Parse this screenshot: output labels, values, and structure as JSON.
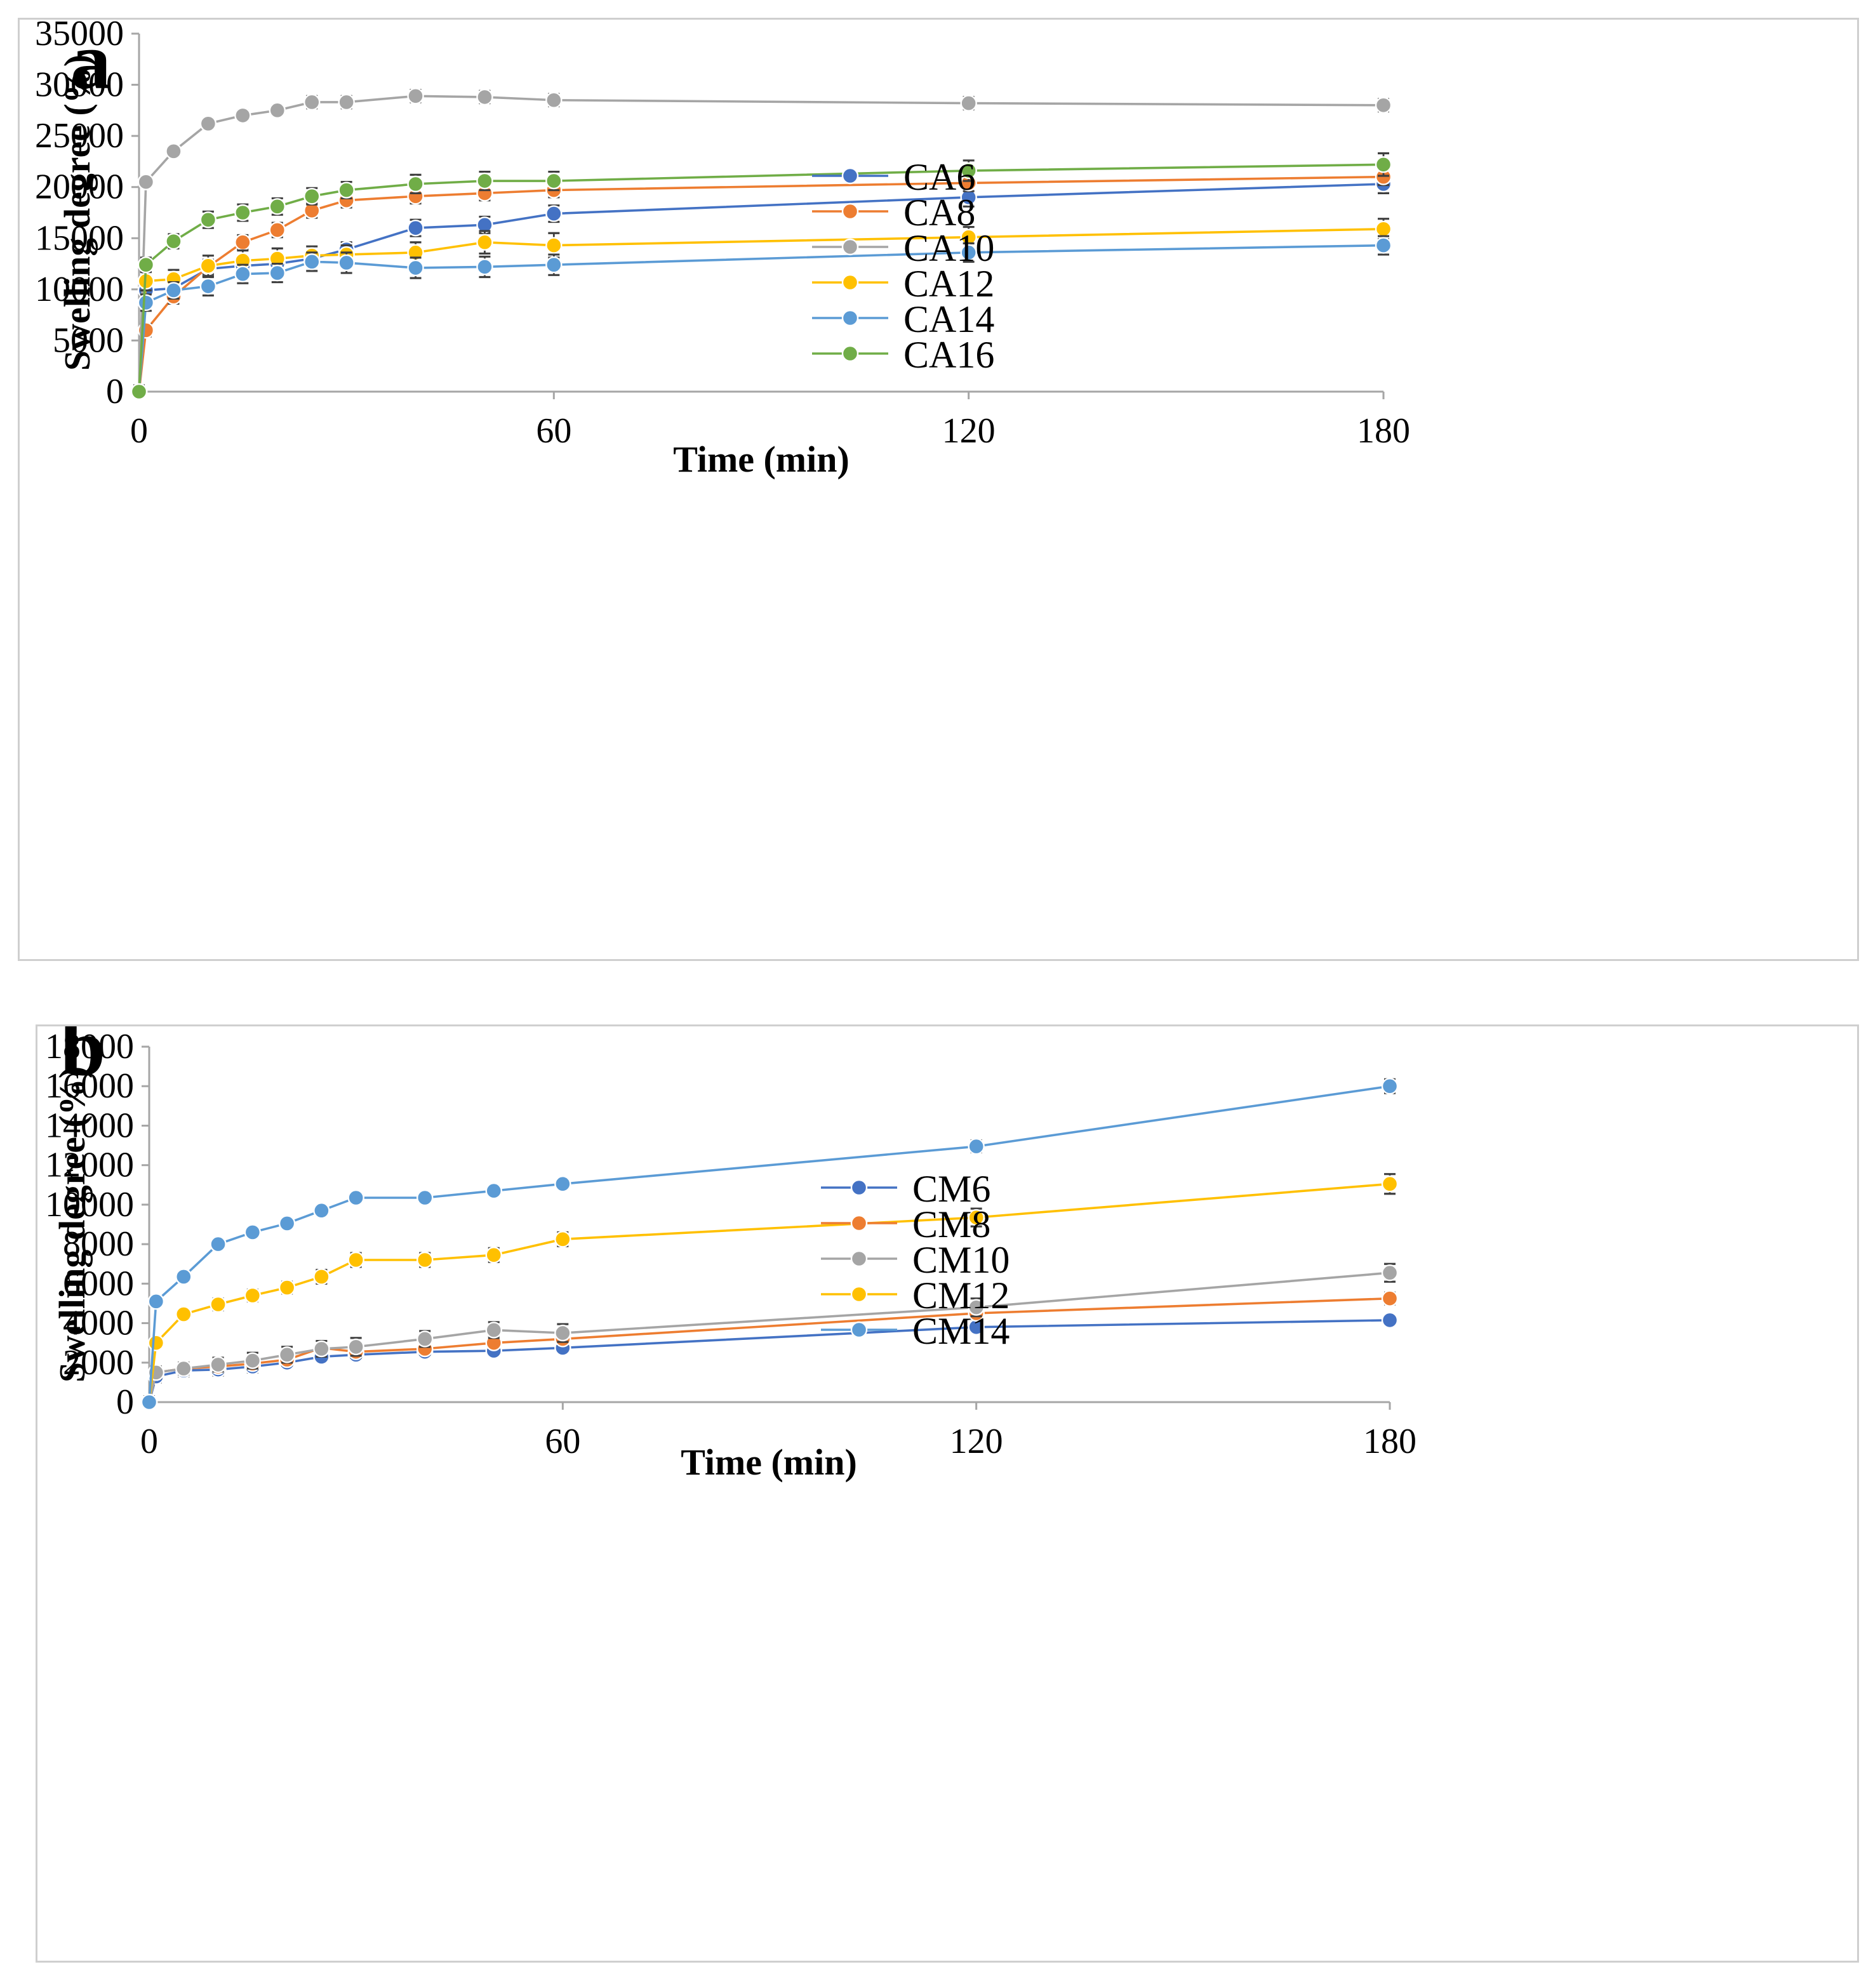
{
  "chart_data": [
    {
      "type": "line",
      "panel_label": "a",
      "title": "",
      "xlabel": "Time (min)",
      "ylabel": "Swelling degree (%)",
      "xlim": [
        0,
        180
      ],
      "ylim": [
        0,
        35000
      ],
      "xticks": [
        0,
        60,
        120,
        180
      ],
      "yticks": [
        0,
        5000,
        10000,
        15000,
        20000,
        25000,
        30000,
        35000
      ],
      "legend_position": "right",
      "x": [
        0,
        1,
        5,
        10,
        15,
        20,
        25,
        30,
        40,
        50,
        60,
        120,
        180
      ],
      "series": [
        {
          "name": "CA6",
          "color": "#4472c4",
          "values": [
            0,
            9900,
            10100,
            12000,
            12300,
            12500,
            13000,
            13900,
            16000,
            16300,
            17400,
            19000,
            20300
          ],
          "errors": [
            600,
            600,
            600,
            700,
            700,
            700,
            700,
            700,
            800,
            800,
            800,
            900,
            900
          ]
        },
        {
          "name": "CA8",
          "color": "#ed7d31",
          "values": [
            0,
            6000,
            9300,
            12200,
            14600,
            15800,
            17700,
            18700,
            19100,
            19400,
            19700,
            20400,
            21000
          ],
          "errors": [
            600,
            600,
            700,
            700,
            700,
            700,
            700,
            700,
            700,
            700,
            700,
            800,
            800
          ]
        },
        {
          "name": "CA10",
          "color": "#a5a5a5",
          "values": [
            0,
            20500,
            23500,
            26200,
            27000,
            27500,
            28300,
            28300,
            28900,
            28800,
            28500,
            28200,
            28000
          ],
          "errors": [
            500,
            500,
            500,
            500,
            500,
            500,
            600,
            600,
            600,
            600,
            600,
            600,
            600
          ]
        },
        {
          "name": "CA12",
          "color": "#ffc000",
          "values": [
            0,
            10800,
            11000,
            12300,
            12800,
            13000,
            13300,
            13400,
            13600,
            14600,
            14300,
            15100,
            15900
          ],
          "errors": [
            600,
            900,
            900,
            1000,
            1000,
            1000,
            900,
            900,
            1000,
            1100,
            1200,
            1000,
            1000
          ]
        },
        {
          "name": "CA14",
          "color": "#5b9bd5",
          "values": [
            0,
            8700,
            9900,
            10300,
            11500,
            11600,
            12700,
            12600,
            12100,
            12200,
            12400,
            13600,
            14300
          ],
          "errors": [
            600,
            800,
            800,
            900,
            900,
            900,
            900,
            1000,
            1000,
            1000,
            1000,
            900,
            900
          ]
        },
        {
          "name": "CA16",
          "color": "#70ad47",
          "values": [
            0,
            12400,
            14700,
            16800,
            17500,
            18100,
            19100,
            19700,
            20300,
            20600,
            20600,
            21600,
            22200
          ],
          "errors": [
            600,
            700,
            700,
            800,
            800,
            800,
            800,
            800,
            900,
            900,
            900,
            1000,
            1100
          ]
        }
      ]
    },
    {
      "type": "line",
      "panel_label": "b",
      "title": "",
      "xlabel": "Time (min)",
      "ylabel": "Swelling degree (%)",
      "xlim": [
        0,
        180
      ],
      "ylim": [
        0,
        18000
      ],
      "xticks": [
        0,
        60,
        120,
        180
      ],
      "yticks": [
        0,
        2000,
        4000,
        6000,
        8000,
        10000,
        12000,
        14000,
        16000,
        18000
      ],
      "legend_position": "right",
      "x": [
        0,
        1,
        5,
        10,
        15,
        20,
        25,
        30,
        40,
        50,
        60,
        120,
        180
      ],
      "series": [
        {
          "name": "CM6",
          "color": "#4472c4",
          "values": [
            0,
            1300,
            1600,
            1650,
            1800,
            2000,
            2300,
            2400,
            2550,
            2600,
            2750,
            3800,
            4150
          ],
          "errors": [
            300,
            300,
            300,
            300,
            300,
            250,
            250,
            250,
            250,
            250,
            250,
            250,
            250
          ]
        },
        {
          "name": "CM8",
          "color": "#ed7d31",
          "values": [
            0,
            1500,
            1700,
            1800,
            1950,
            2150,
            2750,
            2550,
            2700,
            3000,
            3200,
            4500,
            5250
          ],
          "errors": [
            300,
            300,
            300,
            300,
            300,
            300,
            300,
            300,
            300,
            300,
            300,
            300,
            300
          ]
        },
        {
          "name": "CM10",
          "color": "#a5a5a5",
          "values": [
            0,
            1500,
            1700,
            1900,
            2100,
            2400,
            2700,
            2800,
            3200,
            3650,
            3500,
            4800,
            6550
          ],
          "errors": [
            300,
            300,
            300,
            350,
            400,
            400,
            400,
            450,
            400,
            400,
            450,
            450,
            450
          ]
        },
        {
          "name": "CM12",
          "color": "#ffc000",
          "values": [
            0,
            3000,
            4450,
            4950,
            5400,
            5800,
            6350,
            7200,
            7200,
            7450,
            8250,
            9350,
            11050
          ],
          "errors": [
            250,
            250,
            250,
            300,
            300,
            300,
            350,
            350,
            350,
            350,
            350,
            450,
            500
          ]
        },
        {
          "name": "CM14",
          "color": "#5b9bd5",
          "values": [
            0,
            5100,
            6350,
            8000,
            8600,
            9050,
            9700,
            10350,
            10350,
            10700,
            11050,
            12950,
            16000
          ],
          "errors": [
            200,
            200,
            200,
            250,
            250,
            250,
            250,
            250,
            250,
            250,
            250,
            300,
            350
          ]
        }
      ]
    }
  ]
}
